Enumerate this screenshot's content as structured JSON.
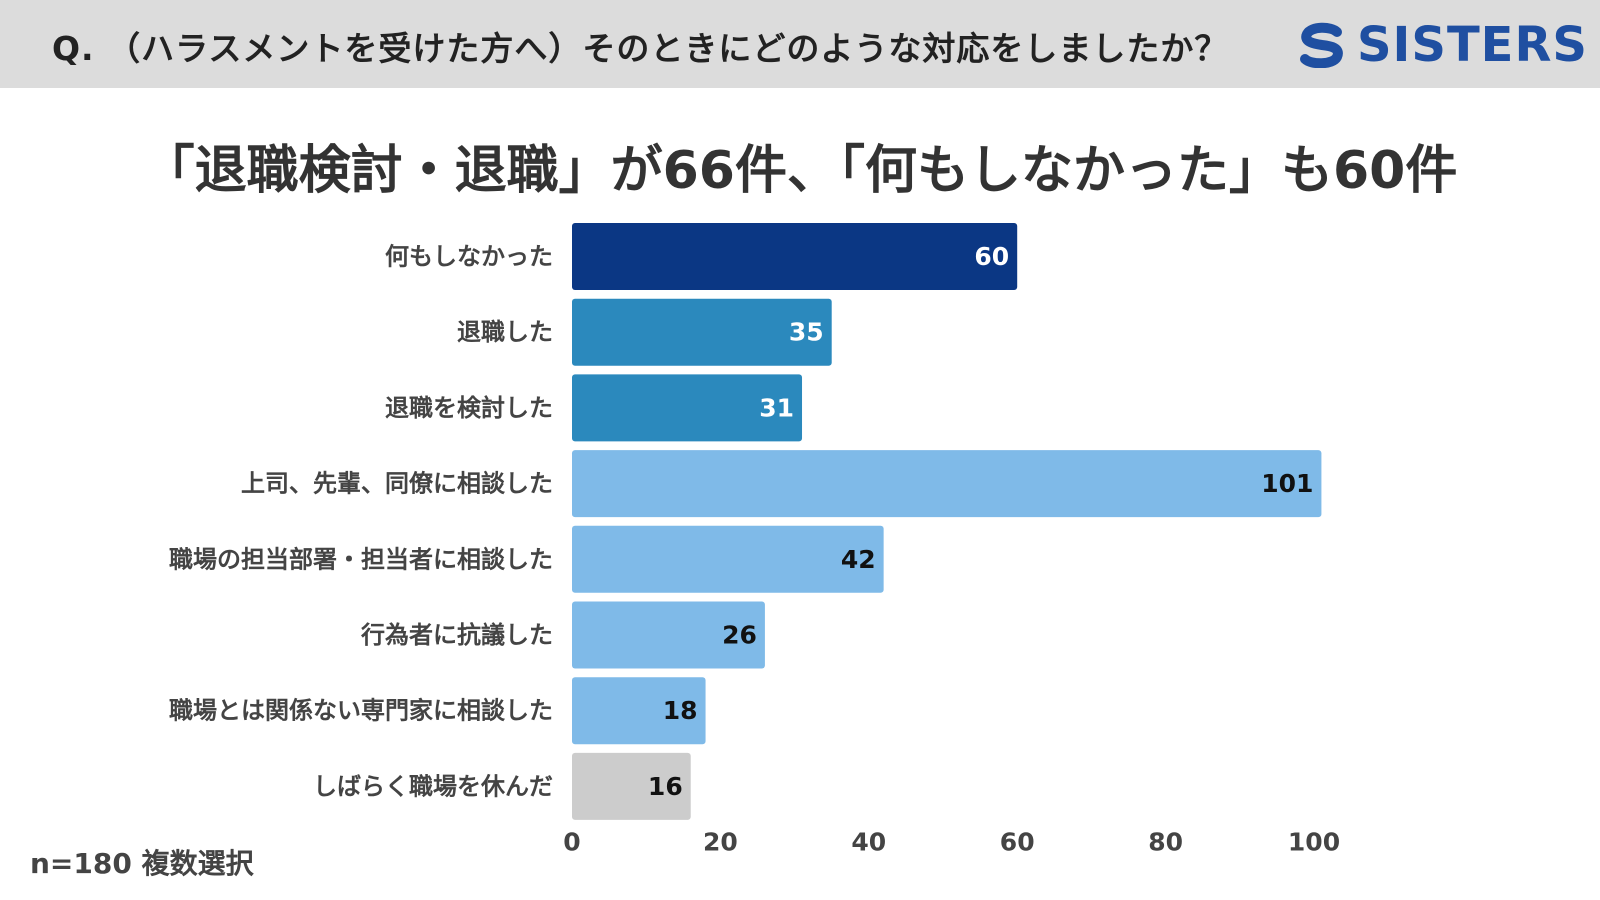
{
  "header": {
    "question": "Q. （ハラスメントを受けた方へ）そのときにどのような対応をしましたか？",
    "logo_text": "SISTERS",
    "logo_icon": "sisters-s-logo"
  },
  "headline": "「退職検討・退職」が66件、「何もしなかった」も60件",
  "footnote": "n=180 複数選択",
  "chart_data": {
    "type": "bar",
    "orientation": "horizontal",
    "categories": [
      "何もしなかった",
      "退職した",
      "退職を検討した",
      "上司、先輩、同僚に相談した",
      "職場の担当部署・担当者に相談した",
      "行為者に抗議した",
      "職場とは関係ない専門家に相談した",
      "しばらく職場を休んだ"
    ],
    "values": [
      60,
      35,
      31,
      101,
      42,
      26,
      18,
      16
    ],
    "bar_colors": [
      "#0b3784",
      "#2b89bd",
      "#2b89bd",
      "#7fbae8",
      "#7fbae8",
      "#7fbae8",
      "#7fbae8",
      "#cccccc"
    ],
    "label_colors": [
      "#ffffff",
      "#ffffff",
      "#ffffff",
      "#111111",
      "#111111",
      "#111111",
      "#111111",
      "#111111"
    ],
    "xlim": [
      0,
      100
    ],
    "xticks": [
      0,
      20,
      40,
      60,
      80,
      100
    ],
    "grid": false,
    "legend": "none"
  }
}
